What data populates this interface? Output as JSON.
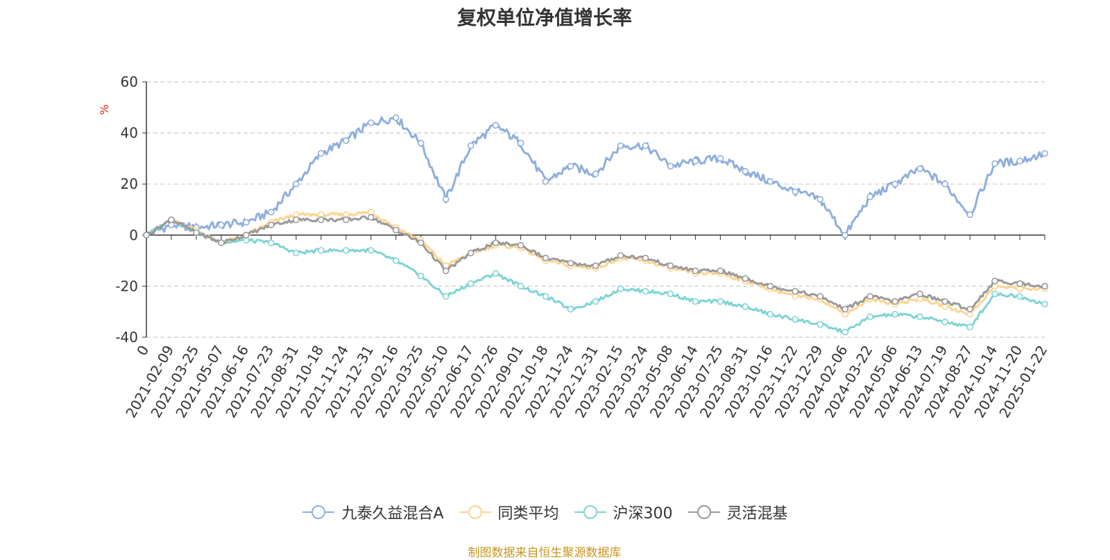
{
  "chart_data": {
    "type": "line",
    "title": "复权单位净值增长率",
    "ylabel": "%",
    "ylim": [
      -40,
      60
    ],
    "yticks": [
      60,
      40,
      20,
      0,
      -20,
      -40
    ],
    "grid": true,
    "legend_position": "bottom-center",
    "categories": [
      "0",
      "2021-02-09",
      "2021-03-25",
      "2021-05-07",
      "2021-06-16",
      "2021-07-23",
      "2021-08-31",
      "2021-10-18",
      "2021-11-24",
      "2021-12-31",
      "2022-02-16",
      "2022-03-25",
      "2022-05-10",
      "2022-06-17",
      "2022-07-26",
      "2022-09-01",
      "2022-10-18",
      "2022-11-24",
      "2022-12-31",
      "2023-02-15",
      "2023-03-24",
      "2023-05-08",
      "2023-06-14",
      "2023-07-25",
      "2023-08-31",
      "2023-10-16",
      "2023-11-22",
      "2023-12-29",
      "2024-02-06",
      "2024-03-22",
      "2024-05-06",
      "2024-06-13",
      "2024-07-19",
      "2024-08-27",
      "2024-10-14",
      "2024-11-20",
      "2025-01-22"
    ],
    "series": [
      {
        "name": "九泰久益混合A",
        "color": "#8eaedd",
        "values": [
          0,
          4,
          3,
          4,
          5,
          9,
          20,
          32,
          37,
          44,
          46,
          36,
          14,
          35,
          43,
          36,
          21,
          27,
          24,
          35,
          35,
          27,
          29,
          30,
          25,
          21,
          17,
          14,
          0,
          15,
          20,
          26,
          20,
          8,
          28,
          29,
          32
        ]
      },
      {
        "name": "同类平均",
        "color": "#fdd48f",
        "values": [
          0,
          6,
          2,
          -3,
          0,
          5,
          8,
          8,
          8,
          9,
          3,
          -2,
          -12,
          -7,
          -4,
          -5,
          -10,
          -12,
          -13,
          -9,
          -10,
          -13,
          -15,
          -15,
          -18,
          -21,
          -24,
          -25,
          -31,
          -25,
          -27,
          -25,
          -28,
          -31,
          -20,
          -21,
          -21
        ]
      },
      {
        "name": "沪深300",
        "color": "#7ed3d4",
        "values": [
          0,
          6,
          1,
          -3,
          -2,
          -3,
          -7,
          -6,
          -6,
          -6,
          -10,
          -16,
          -24,
          -19,
          -15,
          -20,
          -24,
          -29,
          -26,
          -21,
          -22,
          -23,
          -26,
          -26,
          -28,
          -31,
          -33,
          -35,
          -38,
          -32,
          -31,
          -32,
          -34,
          -36,
          -23,
          -24,
          -27
        ]
      },
      {
        "name": "灵活混基",
        "color": "#999999",
        "values": [
          0,
          6,
          1,
          -3,
          0,
          4,
          6,
          6,
          6,
          7,
          2,
          -3,
          -14,
          -7,
          -3,
          -4,
          -9,
          -11,
          -12,
          -8,
          -9,
          -12,
          -14,
          -14,
          -17,
          -20,
          -22,
          -24,
          -29,
          -24,
          -26,
          -23,
          -26,
          -29,
          -18,
          -19,
          -20
        ]
      }
    ]
  },
  "footer": {
    "source": "制图数据来自恒生聚源数据库"
  }
}
